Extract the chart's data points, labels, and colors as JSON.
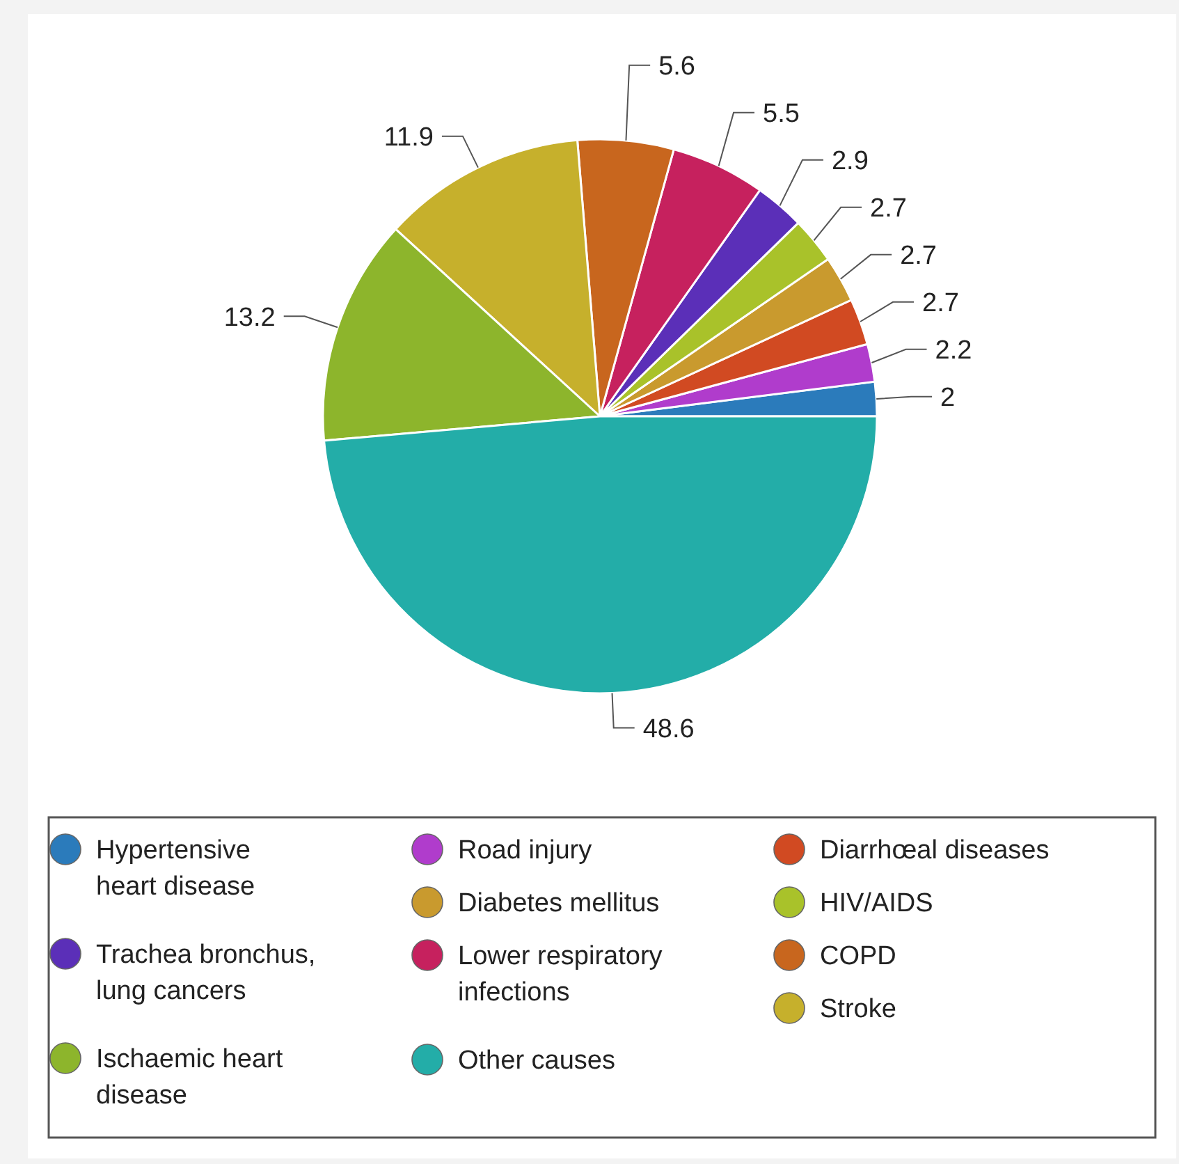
{
  "chart_data": {
    "type": "pie",
    "categories": [
      "Hypertensive heart disease",
      "Road injury",
      "Diarrhœal diseases",
      "Diabetes mellitus",
      "HIV/AIDS",
      "Trachea bronchus, lung cancers",
      "Lower respiratory infections",
      "COPD",
      "Stroke",
      "Ischaemic heart disease",
      "Other causes"
    ],
    "values": [
      2,
      2.2,
      2.7,
      2.7,
      2.7,
      2.9,
      5.5,
      5.6,
      11.9,
      13.2,
      48.6
    ],
    "colors": [
      "#2b7bbb",
      "#b03ccc",
      "#d14a22",
      "#c99a2e",
      "#a9c22a",
      "#5b2fb8",
      "#c6215e",
      "#c8661e",
      "#c6b02c",
      "#8db52c",
      "#23ada8"
    ],
    "data_labels": true,
    "legend": "bottom"
  }
}
